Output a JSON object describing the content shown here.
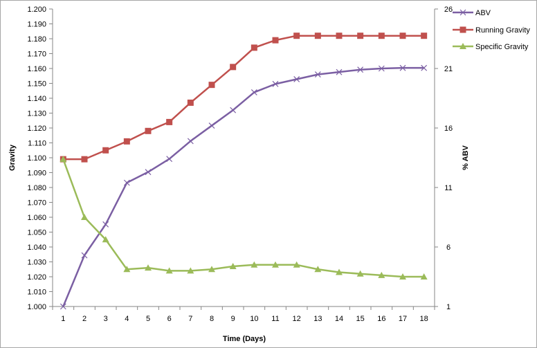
{
  "chart_data": {
    "type": "line",
    "xlabel": "Time (Days)",
    "ylabel": "Gravity",
    "y2label": "% ABV",
    "categories": [
      "1",
      "2",
      "3",
      "4",
      "5",
      "6",
      "7",
      "8",
      "9",
      "10",
      "11",
      "12",
      "13",
      "14",
      "15",
      "16",
      "17",
      "18"
    ],
    "ylim": [
      1.0,
      1.2
    ],
    "y2lim": [
      1,
      26
    ],
    "y_ticks": [
      "1.000",
      "1.010",
      "1.020",
      "1.030",
      "1.040",
      "1.050",
      "1.060",
      "1.070",
      "1.080",
      "1.090",
      "1.100",
      "1.110",
      "1.120",
      "1.130",
      "1.140",
      "1.150",
      "1.160",
      "1.170",
      "1.180",
      "1.190",
      "1.200"
    ],
    "y2_ticks": [
      "1",
      "6",
      "11",
      "16",
      "21",
      "26"
    ],
    "grid": false,
    "legend_position": "top-right",
    "series": [
      {
        "name": "ABV",
        "axis": "right",
        "color": "#7b5fa3",
        "marker": "x",
        "values": [
          1.0,
          5.3,
          7.9,
          11.4,
          12.3,
          13.4,
          14.9,
          16.2,
          17.5,
          19.0,
          19.7,
          20.1,
          20.5,
          20.7,
          20.9,
          21.0,
          21.05,
          21.05
        ]
      },
      {
        "name": "Running Gravity",
        "axis": "left",
        "color": "#c0504d",
        "marker": "square",
        "values": [
          1.099,
          1.099,
          1.105,
          1.111,
          1.118,
          1.124,
          1.137,
          1.149,
          1.161,
          1.174,
          1.179,
          1.182,
          1.182,
          1.182,
          1.182,
          1.182,
          1.182,
          1.182
        ]
      },
      {
        "name": "Specific Gravity",
        "axis": "left",
        "color": "#9bbb59",
        "marker": "triangle",
        "values": [
          1.099,
          1.06,
          1.045,
          1.025,
          1.026,
          1.024,
          1.024,
          1.025,
          1.027,
          1.028,
          1.028,
          1.028,
          1.025,
          1.023,
          1.022,
          1.021,
          1.02,
          1.02
        ]
      }
    ]
  }
}
